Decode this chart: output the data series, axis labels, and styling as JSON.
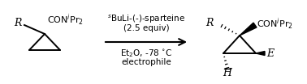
{
  "background_color": "#ffffff",
  "line_color": "#000000",
  "text_color": "#000000",
  "reagent_line1": "$^{s}$BuLi-(-)-sparteine",
  "reagent_line2": "(2.5 equiv)",
  "condition_line1": "Et$_2$O, -78 $^{\\circ}$C",
  "condition_line2": "electrophile",
  "fig_width": 3.78,
  "fig_height": 1.04,
  "dpi": 100
}
